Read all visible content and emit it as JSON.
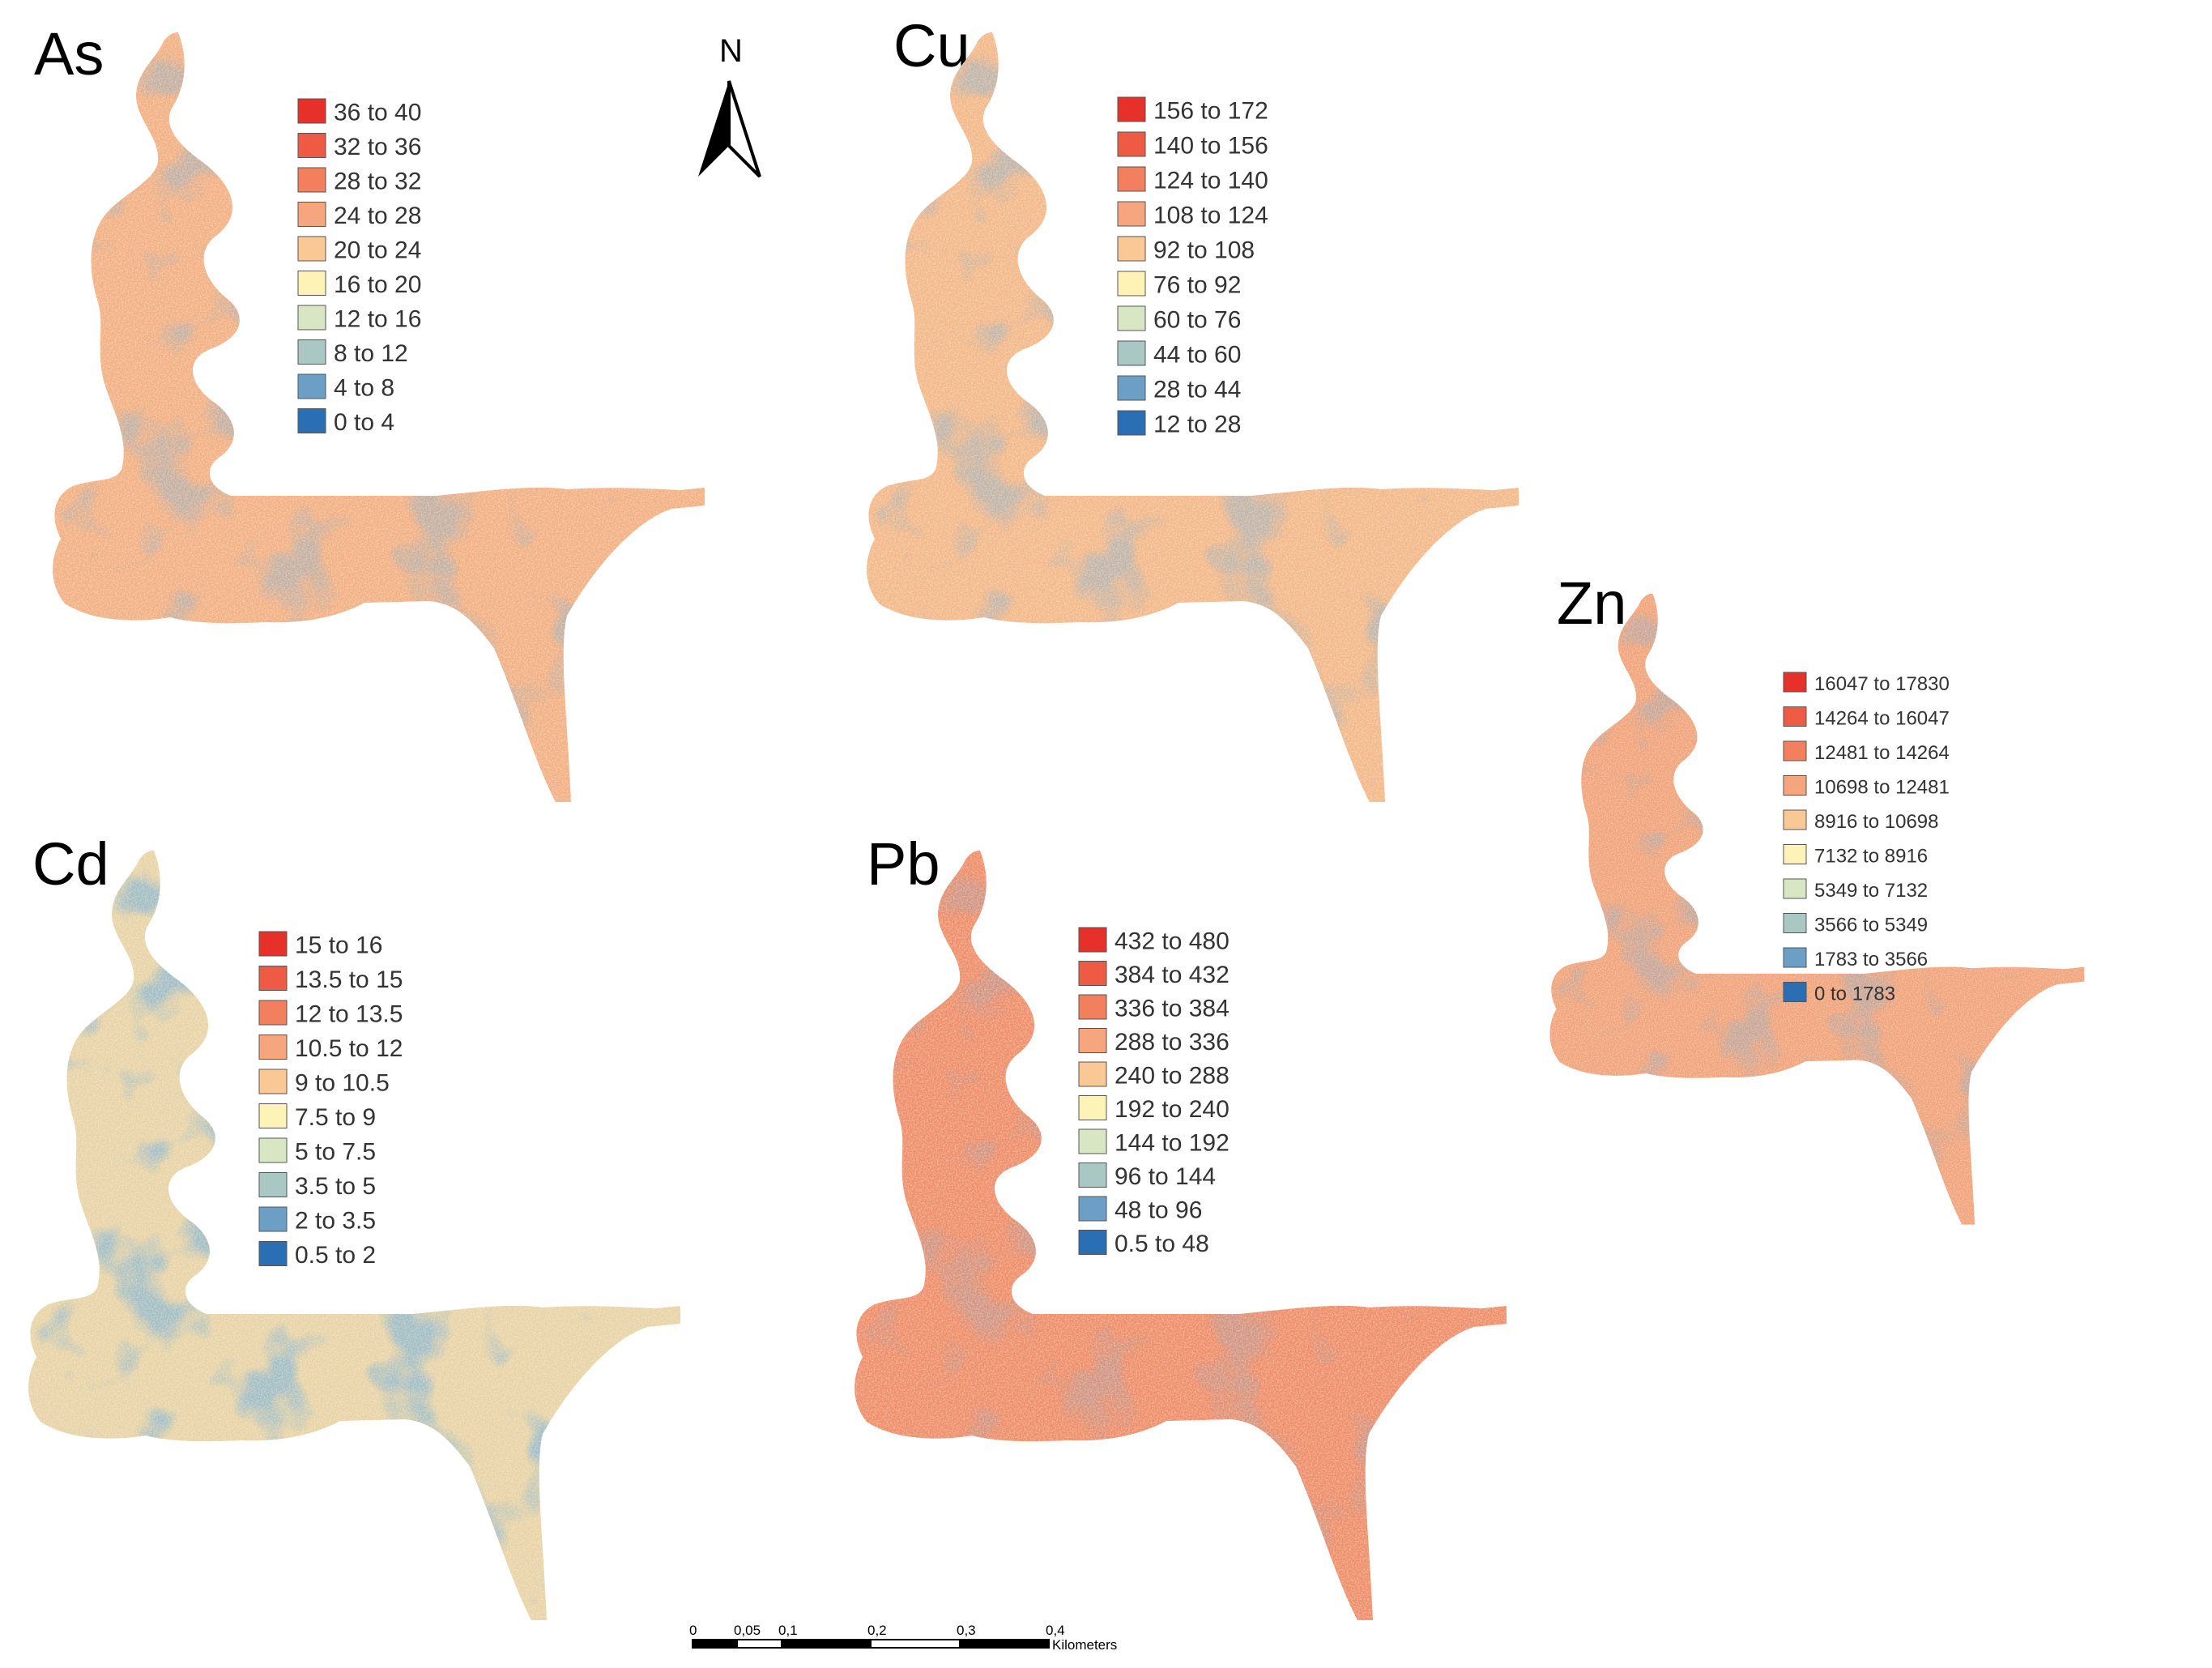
{
  "maps": [
    {
      "id": "as",
      "title": "As",
      "legend": [
        "36 to 40",
        "32 to 36",
        "28 to 32",
        "24 to 28",
        "20 to 24",
        "16 to 20",
        "12 to 16",
        "8 to 12",
        "4 to 8",
        "0 to 4"
      ],
      "level": 0.65
    },
    {
      "id": "cu",
      "title": "Cu",
      "legend": [
        "156 to 172",
        "140 to 156",
        "124 to 140",
        "108 to 124",
        "92 to 108",
        "76 to 92",
        "60 to 76",
        "44 to 60",
        "28 to 44",
        "12 to 28"
      ],
      "level": 0.62
    },
    {
      "id": "zn",
      "title": "Zn",
      "legend": [
        "16047 to 17830",
        "14264 to 16047",
        "12481 to 14264",
        "10698 to 12481",
        "8916 to 10698",
        "7132 to 8916",
        "5349 to 7132",
        "3566 to 5349",
        "1783 to 3566",
        "0 to 1783"
      ],
      "level": 0.7
    },
    {
      "id": "cd",
      "title": "Cd",
      "legend": [
        "15 to 16",
        "13.5 to 15",
        "12 to 13.5",
        "10.5 to 12",
        "9 to 10.5",
        "7.5 to 9",
        "5 to 7.5",
        "3.5 to 5",
        "2 to 3.5",
        "0.5 to 2"
      ],
      "level": 0.42
    },
    {
      "id": "pb",
      "title": "Pb",
      "legend": [
        "432 to 480",
        "384 to 432",
        "336 to 384",
        "288 to 336",
        "240 to 288",
        "192 to 240",
        "144 to 192",
        "96 to 144",
        "48 to 96",
        "0.5 to 48"
      ],
      "level": 0.78
    }
  ],
  "legend_colors": [
    "#e8302a",
    "#ee5a44",
    "#f2805f",
    "#f6a67e",
    "#fac895",
    "#fdf3b6",
    "#d8e6c4",
    "#a9c7c3",
    "#6c9fc6",
    "#2a6fb3"
  ],
  "north_arrow": {
    "label": "N"
  },
  "scale_bar": {
    "ticks": [
      "0",
      "0,05",
      "0,1",
      "0,2",
      "0,3",
      "0,4"
    ],
    "tick_values": [
      0,
      0.05,
      0.1,
      0.2,
      0.3,
      0.4
    ],
    "unit": "Kilometers"
  }
}
